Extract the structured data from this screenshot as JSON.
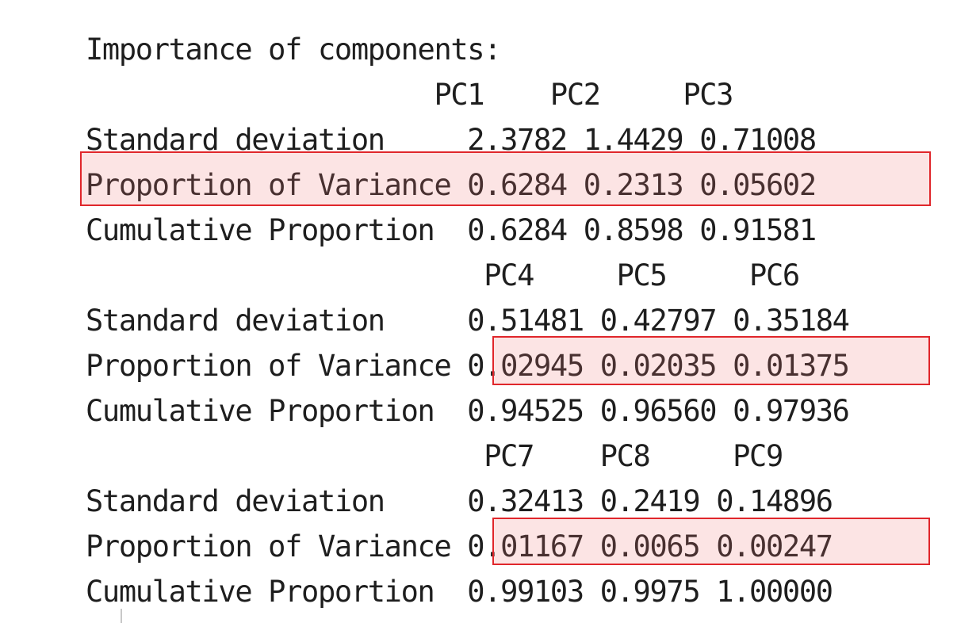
{
  "output": {
    "header": "Importance of components:",
    "blocks": [
      {
        "pc_header": "                     PC1    PC2     PC3",
        "rows": [
          {
            "label": "Standard deviation    ",
            "values": " 2.3782 1.4429 0.71008"
          },
          {
            "label": "Proportion of Variance",
            "values": " 0.6284 0.2313 0.05602"
          },
          {
            "label": "Cumulative Proportion ",
            "values": " 0.6284 0.8598 0.91581"
          }
        ]
      },
      {
        "pc_header": "                        PC4     PC5     PC6",
        "rows": [
          {
            "label": "Standard deviation    ",
            "values": " 0.51481 0.42797 0.35184"
          },
          {
            "label": "Proportion of Variance",
            "values": " 0.02945 0.02035 0.01375"
          },
          {
            "label": "Cumulative Proportion ",
            "values": " 0.94525 0.96560 0.97936"
          }
        ]
      },
      {
        "pc_header": "                        PC7    PC8     PC9",
        "rows": [
          {
            "label": "Standard deviation    ",
            "values": " 0.32413 0.2419 0.14896"
          },
          {
            "label": "Proportion of Variance",
            "values": " 0.01167 0.0065 0.00247"
          },
          {
            "label": "Cumulative Proportion ",
            "values": " 0.99103 0.9975 1.00000"
          }
        ]
      }
    ]
  },
  "highlight_color": "#e0262b"
}
